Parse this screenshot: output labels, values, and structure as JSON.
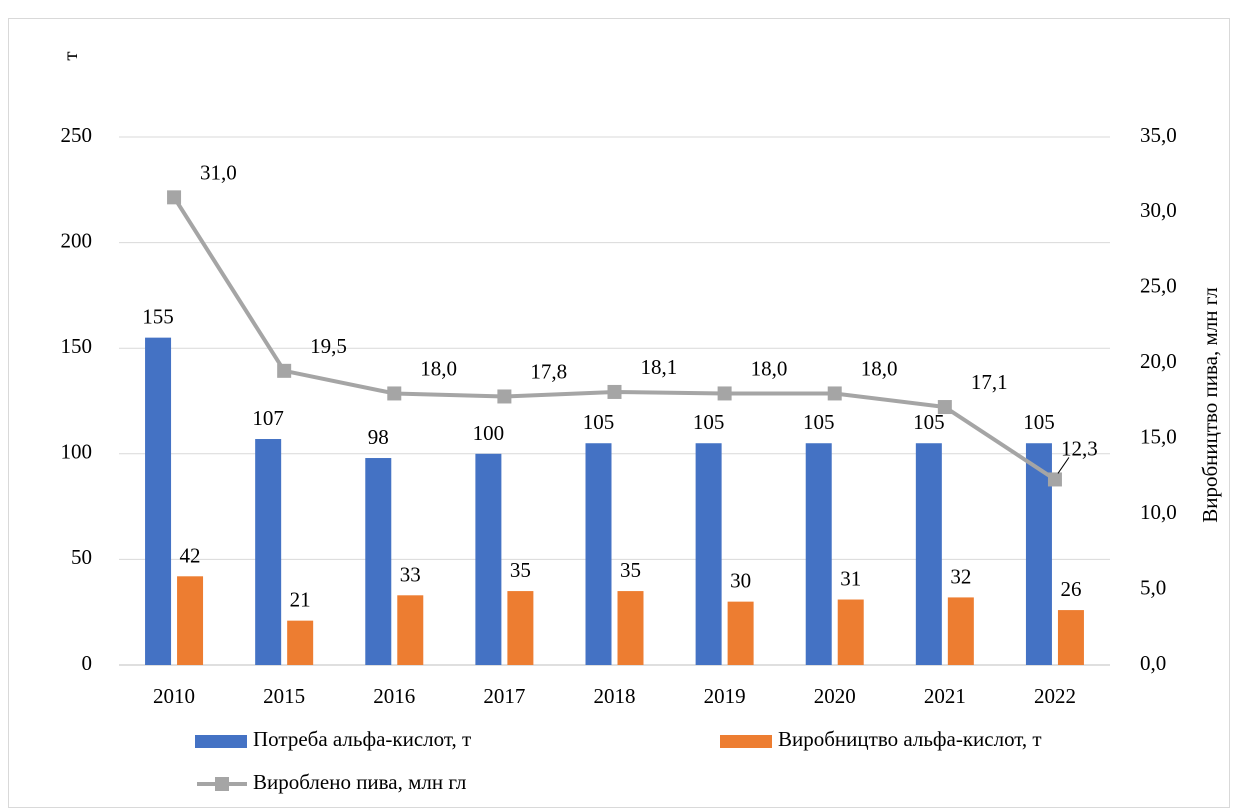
{
  "chart_data": {
    "type": "bar",
    "categories": [
      "2010",
      "2015",
      "2016",
      "2017",
      "2018",
      "2019",
      "2020",
      "2021",
      "2022"
    ],
    "series": [
      {
        "name": "Потреба альфа-кислот, т",
        "type": "bar",
        "axis": "left",
        "color": "#4472C4",
        "values": [
          155,
          107,
          98,
          100,
          105,
          105,
          105,
          105,
          105
        ],
        "labels": [
          "155",
          "107",
          "98",
          "100",
          "105",
          "105",
          "105",
          "105",
          "105"
        ]
      },
      {
        "name": "Виробництво альфа-кислот, т",
        "type": "bar",
        "axis": "left",
        "color": "#ED7D31",
        "values": [
          42,
          21,
          33,
          35,
          35,
          30,
          31,
          32,
          26
        ],
        "labels": [
          "42",
          "21",
          "33",
          "35",
          "35",
          "30",
          "31",
          "32",
          "26"
        ]
      },
      {
        "name": "Вироблено пива, млн гл",
        "type": "line",
        "axis": "right",
        "color": "#A5A5A5",
        "values": [
          31.0,
          19.5,
          18.0,
          17.8,
          18.1,
          18.0,
          18.0,
          17.1,
          12.3
        ],
        "labels": [
          "31,0",
          "19,5",
          "18,0",
          "17,8",
          "18,1",
          "18,0",
          "18,0",
          "17,1",
          "12,3"
        ]
      }
    ],
    "ylabel_left": "т",
    "ylabel_right": "Виробництво пива, млн гл",
    "ylim_left": [
      0,
      250
    ],
    "ylim_right": [
      0,
      35
    ],
    "yticks_left": [
      "0",
      "50",
      "100",
      "150",
      "200",
      "250"
    ],
    "yticks_right": [
      "0,0",
      "5,0",
      "10,0",
      "15,0",
      "20,0",
      "25,0",
      "30,0",
      "35,0"
    ],
    "grid": true,
    "legend_position": "bottom"
  }
}
